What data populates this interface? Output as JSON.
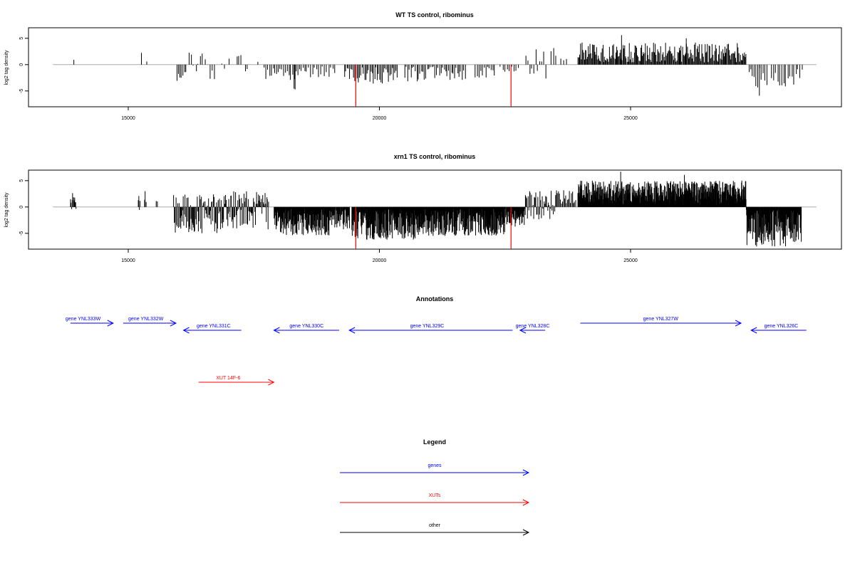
{
  "chart_data": [
    {
      "type": "bar",
      "title": "WT TS control, ribominus",
      "ylabel": "log2 tag density",
      "xlabel": "",
      "xlim": [
        13500,
        28700
      ],
      "ylim": [
        -8,
        7
      ],
      "x_ticks": [
        15000,
        20000,
        25000
      ],
      "y_ticks": [
        -5,
        0,
        5
      ],
      "baseline": {
        "from": 13500,
        "to": 28700,
        "color": "#aaaaaa"
      },
      "highlight_color": "#ff0000",
      "highlights": [
        {
          "x": 19530,
          "y": -7.9
        },
        {
          "x": 22620,
          "y": -7.9
        }
      ],
      "segments": [
        {
          "from": 13900,
          "to": 13960,
          "lo": 0.8,
          "hi": 1.0,
          "step": 100,
          "seed": 1
        },
        {
          "from": 15260,
          "to": 15290,
          "lo": 2.0,
          "hi": 2.6,
          "step": 40,
          "seed": 2
        },
        {
          "from": 15350,
          "to": 15370,
          "lo": 0.5,
          "hi": 0.9,
          "step": 40,
          "seed": 3
        },
        {
          "from": 15960,
          "to": 16150,
          "lo": -3.2,
          "hi": -0.8,
          "step": 30,
          "seed": 4
        },
        {
          "from": 16200,
          "to": 16550,
          "lo": -2.0,
          "hi": 2.8,
          "step": 45,
          "seed": 5
        },
        {
          "from": 16580,
          "to": 16700,
          "lo": -2.8,
          "hi": 1.0,
          "step": 40,
          "seed": 6
        },
        {
          "from": 16860,
          "to": 17000,
          "lo": -1.5,
          "hi": 1.5,
          "step": 45,
          "seed": 7
        },
        {
          "from": 17150,
          "to": 17250,
          "lo": 1.0,
          "hi": 2.4,
          "step": 40,
          "seed": 8
        },
        {
          "from": 17320,
          "to": 17360,
          "lo": -1.5,
          "hi": -0.5,
          "step": 40,
          "seed": 9
        },
        {
          "from": 17570,
          "to": 17600,
          "lo": 0.5,
          "hi": 1.0,
          "step": 40,
          "seed": 10
        },
        {
          "from": 17700,
          "to": 18500,
          "lo": -3.0,
          "hi": -0.3,
          "step": 35,
          "seed": 11
        },
        {
          "from": 18300,
          "to": 18320,
          "lo": -4.8,
          "hi": -4.5,
          "step": 20,
          "seed": 12
        },
        {
          "from": 18500,
          "to": 19100,
          "lo": -2.5,
          "hi": -0.3,
          "step": 40,
          "seed": 13
        },
        {
          "from": 19300,
          "to": 20350,
          "lo": -3.6,
          "hi": -0.5,
          "step": 25,
          "seed": 14
        },
        {
          "from": 20500,
          "to": 21700,
          "lo": -3.2,
          "hi": -0.3,
          "step": 30,
          "seed": 15
        },
        {
          "from": 21900,
          "to": 22300,
          "lo": -2.6,
          "hi": -0.4,
          "step": 35,
          "seed": 16
        },
        {
          "from": 22400,
          "to": 22800,
          "lo": -1.5,
          "hi": -0.3,
          "step": 45,
          "seed": 17
        },
        {
          "from": 22900,
          "to": 23300,
          "lo": -3.0,
          "hi": 3.2,
          "step": 40,
          "seed": 18
        },
        {
          "from": 23400,
          "to": 23500,
          "lo": 1.0,
          "hi": 3.6,
          "step": 50,
          "seed": 19
        },
        {
          "from": 23600,
          "to": 23700,
          "lo": 0.8,
          "hi": 1.6,
          "step": 50,
          "seed": 20
        },
        {
          "from": 23950,
          "to": 27300,
          "lo": 0.4,
          "hi": 4.2,
          "step": 16,
          "seed": 21
        },
        {
          "from": 24820,
          "to": 24830,
          "lo": 5.6,
          "hi": 5.6,
          "step": 20,
          "seed": 22
        },
        {
          "from": 26100,
          "to": 26110,
          "lo": 5.0,
          "hi": 5.0,
          "step": 20,
          "seed": 23
        },
        {
          "from": 27350,
          "to": 27700,
          "lo": -4.5,
          "hi": -0.5,
          "step": 35,
          "seed": 24
        },
        {
          "from": 27560,
          "to": 27570,
          "lo": -5.9,
          "hi": -5.9,
          "step": 20,
          "seed": 25
        },
        {
          "from": 27800,
          "to": 28400,
          "lo": -4.2,
          "hi": -0.5,
          "step": 40,
          "seed": 26
        }
      ]
    },
    {
      "type": "bar",
      "title": "xrn1 TS control, ribominus",
      "ylabel": "log2 tag density",
      "xlabel": "",
      "xlim": [
        13500,
        28700
      ],
      "ylim": [
        -8,
        7
      ],
      "x_ticks": [
        15000,
        20000,
        25000
      ],
      "y_ticks": [
        -5,
        0,
        5
      ],
      "baseline": {
        "from": 13500,
        "to": 28700,
        "color": "#aaaaaa"
      },
      "highlight_color": "#ff0000",
      "highlights": [
        {
          "x": 19530,
          "y": -7.9
        },
        {
          "x": 22620,
          "y": -7.9
        }
      ],
      "segments": [
        {
          "from": 13850,
          "to": 13960,
          "lo": -0.5,
          "hi": 2.7,
          "step": 10,
          "seed": 31
        },
        {
          "from": 15200,
          "to": 15230,
          "lo": -1.0,
          "hi": 4.0,
          "step": 10,
          "seed": 32
        },
        {
          "from": 15320,
          "to": 15350,
          "lo": 0.5,
          "hi": 3.5,
          "step": 15,
          "seed": 33
        },
        {
          "from": 15550,
          "to": 15580,
          "lo": 1.0,
          "hi": 2.0,
          "step": 20,
          "seed": 34
        },
        {
          "from": 15900,
          "to": 17000,
          "lo": -5.0,
          "hi": 2.5,
          "step": 12,
          "seed": 35
        },
        {
          "from": 17000,
          "to": 17800,
          "lo": -4.5,
          "hi": 3.0,
          "step": 12,
          "seed": 36
        },
        {
          "from": 17900,
          "to": 19000,
          "lo": -5.5,
          "hi": -0.3,
          "step": 8,
          "seed": 37
        },
        {
          "from": 19000,
          "to": 19400,
          "lo": -4.5,
          "hi": -0.3,
          "step": 10,
          "seed": 38
        },
        {
          "from": 19450,
          "to": 20800,
          "lo": -6.2,
          "hi": -0.3,
          "step": 7,
          "seed": 39
        },
        {
          "from": 20800,
          "to": 22500,
          "lo": -5.5,
          "hi": -0.3,
          "step": 7,
          "seed": 40
        },
        {
          "from": 22500,
          "to": 22900,
          "lo": -4.0,
          "hi": -0.3,
          "step": 10,
          "seed": 41
        },
        {
          "from": 22900,
          "to": 23500,
          "lo": -2.5,
          "hi": 3.3,
          "step": 14,
          "seed": 42
        },
        {
          "from": 23500,
          "to": 23900,
          "lo": 0.5,
          "hi": 3.2,
          "step": 20,
          "seed": 43
        },
        {
          "from": 23950,
          "to": 27300,
          "lo": 0.4,
          "hi": 5.0,
          "step": 6,
          "seed": 44
        },
        {
          "from": 24800,
          "to": 24810,
          "lo": 6.7,
          "hi": 6.7,
          "step": 20,
          "seed": 45
        },
        {
          "from": 26070,
          "to": 26080,
          "lo": 6.1,
          "hi": 6.1,
          "step": 20,
          "seed": 46
        },
        {
          "from": 27300,
          "to": 28400,
          "lo": -7.5,
          "hi": -0.5,
          "step": 8,
          "seed": 47
        }
      ]
    }
  ],
  "annotations": {
    "title": "Annotations",
    "features": [
      {
        "label": "gene YNL333W",
        "start": 13850,
        "end": 13900,
        "track": 0,
        "color": "#0000ff",
        "arrow_from": 13850,
        "arrow_to": 14700,
        "label_x": 14100
      },
      {
        "label": "gene YNL332W",
        "start": 15000,
        "end": 16000,
        "track": 0,
        "color": "#0000ff",
        "arrow_from": 14900,
        "arrow_to": 15950,
        "label_x": 15350
      },
      {
        "label": "gene YNL331C",
        "start": 16100,
        "end": 17200,
        "track": 1,
        "color": "#0000ff",
        "arrow_from": 17250,
        "arrow_to": 16100,
        "label_x": 16700
      },
      {
        "label": "gene YNL330C",
        "start": 17900,
        "end": 19200,
        "track": 1,
        "color": "#0000ff",
        "arrow_from": 19200,
        "arrow_to": 17900,
        "label_x": 18550
      },
      {
        "label": "gene YNL329C",
        "start": 19400,
        "end": 22650,
        "track": 1,
        "color": "#0000ff",
        "arrow_from": 22650,
        "arrow_to": 19400,
        "label_x": 20950
      },
      {
        "label": "gene YNL328C",
        "start": 22800,
        "end": 23300,
        "track": 1,
        "color": "#0000ff",
        "arrow_from": 23300,
        "arrow_to": 22800,
        "label_x": 23050
      },
      {
        "label": "gene YNL327W",
        "start": 24000,
        "end": 27200,
        "track": 0,
        "color": "#0000ff",
        "arrow_from": 24000,
        "arrow_to": 27200,
        "label_x": 25600
      },
      {
        "label": "gene YNL326C",
        "start": 27450,
        "end": 28500,
        "track": 1,
        "color": "#0000ff",
        "arrow_from": 28500,
        "arrow_to": 27400,
        "label_x": 28000
      },
      {
        "label": "XUT 14F-6",
        "start": 16400,
        "end": 17900,
        "track": 2,
        "color": "#ff0000",
        "arrow_from": 16400,
        "arrow_to": 17900,
        "label_x": 16990
      }
    ]
  },
  "legend": {
    "title": "Legend",
    "items": [
      {
        "label": "genes",
        "color": "#0000ff"
      },
      {
        "label": "XUTs",
        "color": "#ff0000"
      },
      {
        "label": "other",
        "color": "#000000"
      }
    ]
  }
}
